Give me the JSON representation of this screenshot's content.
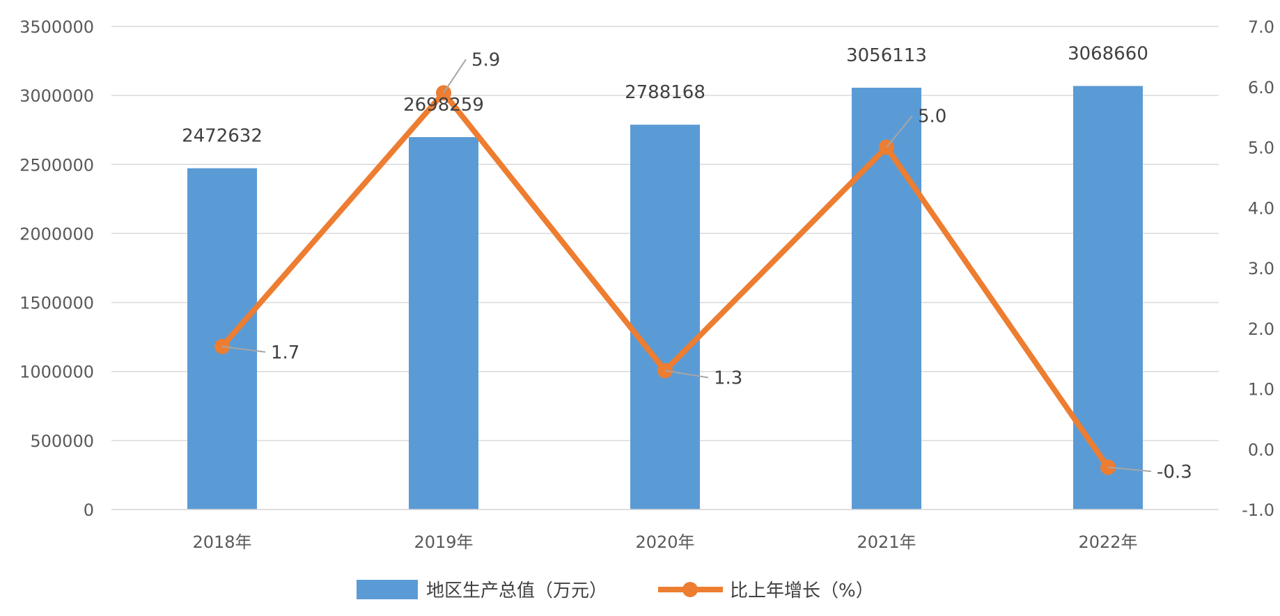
{
  "chart_data": {
    "type": "bar",
    "categories": [
      "2018年",
      "2019年",
      "2020年",
      "2021年",
      "2022年"
    ],
    "series": [
      {
        "name": "地区生产总值（万元）",
        "type": "bar",
        "axis": "left",
        "color": "#5b9bd5",
        "values": [
          2472632,
          2698259,
          2788168,
          3056113,
          3068660
        ],
        "labels": [
          "2472632",
          "2698259",
          "2788168",
          "3056113",
          "3068660"
        ]
      },
      {
        "name": "比上年增长（%）",
        "type": "line",
        "axis": "right",
        "color": "#ed7d31",
        "values": [
          1.7,
          5.9,
          1.3,
          5.0,
          -0.3
        ],
        "labels": [
          "1.7",
          "5.9",
          "1.3",
          "5.0",
          "-0.3"
        ]
      }
    ],
    "y_left": {
      "ylim": [
        0,
        3500000
      ],
      "ticks": [
        0,
        500000,
        1000000,
        1500000,
        2000000,
        2500000,
        3000000,
        3500000
      ],
      "tick_labels": [
        "0",
        "500000",
        "1000000",
        "1500000",
        "2000000",
        "2500000",
        "3000000",
        "3500000"
      ]
    },
    "y_right": {
      "ylim": [
        -1.0,
        7.0
      ],
      "ticks": [
        -1,
        0,
        1,
        2,
        3,
        4,
        5,
        6,
        7
      ],
      "tick_labels": [
        "-1.0",
        "0.0",
        "1.0",
        "2.0",
        "3.0",
        "4.0",
        "5.0",
        "6.0",
        "7.0"
      ]
    },
    "grid": true,
    "legend_position": "bottom",
    "title": "",
    "xlabel": "",
    "ylabel": ""
  }
}
